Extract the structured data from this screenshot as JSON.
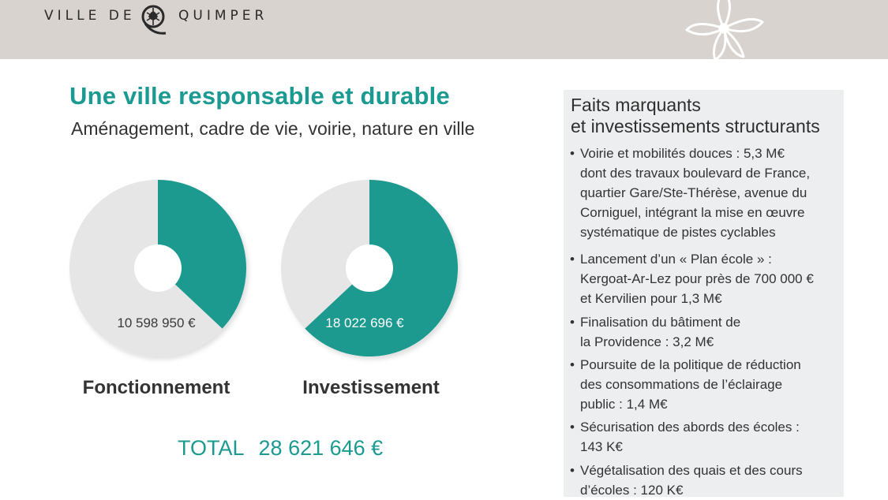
{
  "header": {
    "brand_left": "VILLE DE",
    "brand_right": "QUIMPER",
    "logo_icon": "quimper-emblem-icon",
    "decoration_icon": "flower-outline-icon",
    "background_color": "#d9d3cf"
  },
  "title": "Une ville responsable et durable",
  "subtitle": "Aménagement, cadre de vie, voirie, nature en ville",
  "colors": {
    "accent": "#1a9a90",
    "pie_remainder": "#e6e6e6"
  },
  "chart_data": [
    {
      "type": "pie",
      "title": "Fonctionnement",
      "value_label": "10 598 950 €",
      "value": 10598950,
      "share_of_total": 0.37,
      "donut": true
    },
    {
      "type": "pie",
      "title": "Investissement",
      "value_label": "18 022 696 €",
      "value": 18022696,
      "share_of_total": 0.63,
      "donut": true
    }
  ],
  "total": {
    "label": "TOTAL",
    "value": "28 621 646 €"
  },
  "panel": {
    "heading_line1": "Faits marquants",
    "heading_line2": "et investissements structurants",
    "bullets": [
      "Voirie et mobilités douces : 5,3 M€\ndont des travaux boulevard de France,\nquartier Gare/Ste-Thérèse, avenue du\nCorniguel, intégrant la mise en œuvre\nsystématique de pistes cyclables",
      "Lancement d’un « Plan école » :\nKergoat-Ar-Lez pour près de 700 000 €\net Kervilien pour 1,3 M€",
      "Finalisation du bâtiment de\nla  Providence : 3,2 M€",
      "Poursuite de la politique de réduction\ndes consommations de l’éclairage\npublic : 1,4 M€",
      "Sécurisation des abords des écoles :\n143 K€",
      "Végétalisation des quais et des cours\nd’écoles : 120 K€"
    ],
    "bullet_glyph": "•"
  }
}
